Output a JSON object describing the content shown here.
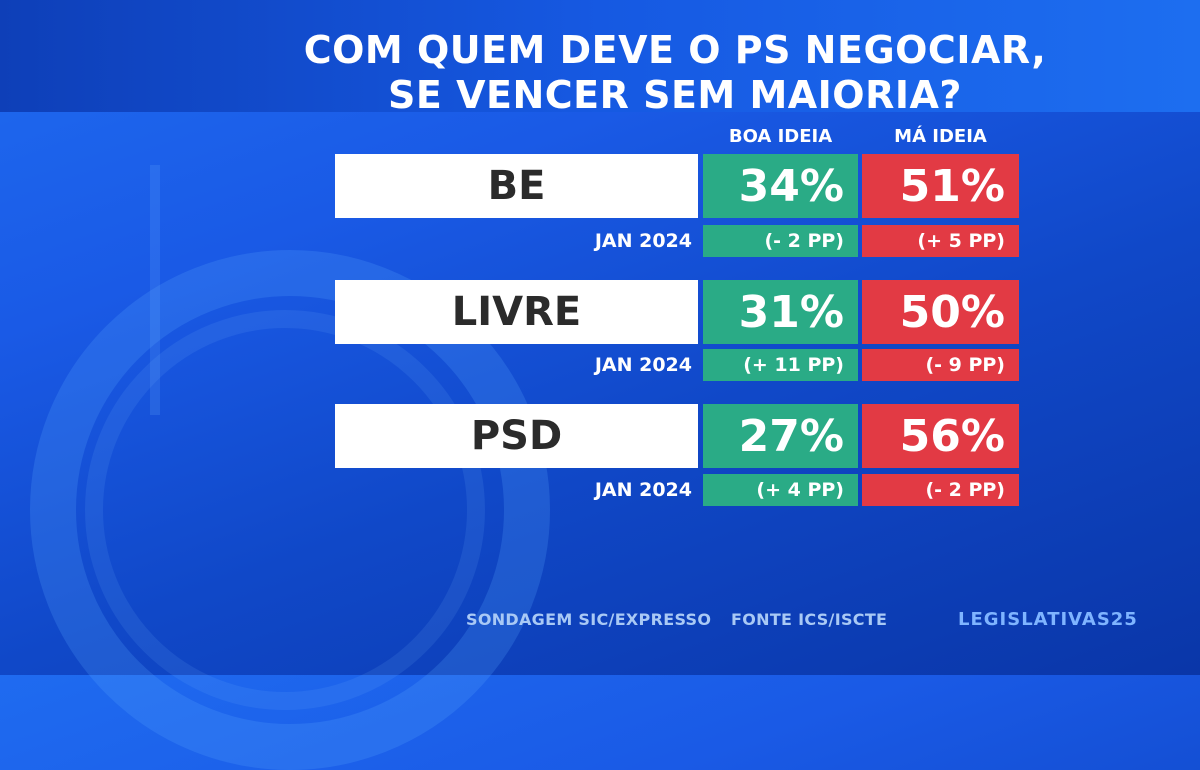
{
  "title_line1": "COM QUEM DEVE O PS NEGOCIAR,",
  "title_line2": "SE VENCER SEM MAIORIA?",
  "columns": [
    "BOA IDEIA",
    "MÁ IDEIA"
  ],
  "colors": {
    "good": "#2aab86",
    "bad": "#e23a44",
    "background": "#1a5ae6"
  },
  "chart_data": {
    "type": "table",
    "title": "COM QUEM DEVE O PS NEGOCIAR, SE VENCER SEM MAIORIA?",
    "columns": [
      "BOA IDEIA",
      "MÁ IDEIA"
    ],
    "rows": [
      {
        "party": "BE",
        "boa": "34%",
        "ma": "51%",
        "date": "JAN 2024",
        "boa_change": "(- 2 PP)",
        "ma_change": "(+ 5 PP)"
      },
      {
        "party": "LIVRE",
        "boa": "31%",
        "ma": "50%",
        "date": "JAN 2024",
        "boa_change": "(+ 11 PP)",
        "ma_change": "(- 9 PP)"
      },
      {
        "party": "PSD",
        "boa": "27%",
        "ma": "56%",
        "date": "JAN 2024",
        "boa_change": "(+ 4 PP)",
        "ma_change": "(- 2 PP)"
      }
    ]
  },
  "footer": {
    "source1": "SONDAGEM SIC/EXPRESSO",
    "source2": "FONTE ICS/ISCTE",
    "brand": "LEGISLATIVAS25"
  }
}
